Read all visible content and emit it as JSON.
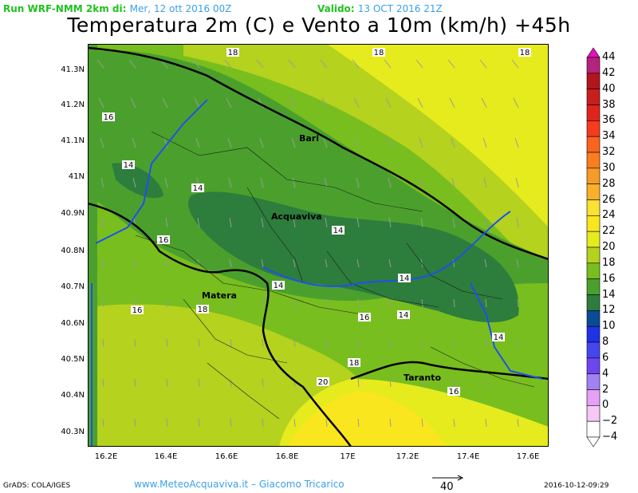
{
  "header": {
    "run_label": "Run WRF-NMM 2km di:",
    "run_date": "Mer, 12 ott 2016 00Z",
    "valid_label": "Valido:",
    "valid_date": "13 OCT 2016 21Z",
    "title": "Temperatura 2m (C) e Vento a 10m (km/h) +45h"
  },
  "map": {
    "lat_ticks": [
      "41.3N",
      "41.2N",
      "41.1N",
      "41N",
      "40.9N",
      "40.8N",
      "40.7N",
      "40.6N",
      "40.5N",
      "40.4N",
      "40.3N"
    ],
    "lon_ticks": [
      "16.2E",
      "16.4E",
      "16.6E",
      "16.8E",
      "17E",
      "17.2E",
      "17.4E",
      "17.6E"
    ],
    "cities": [
      "Bari",
      "Acquaviva",
      "Matera",
      "Taranto"
    ],
    "contour_labels": [
      "18",
      "18",
      "18",
      "16",
      "14",
      "14",
      "14",
      "14",
      "14",
      "14",
      "16",
      "16",
      "18",
      "16",
      "18",
      "20",
      "16",
      "14"
    ]
  },
  "colorbar": {
    "levels": [
      "44",
      "42",
      "40",
      "38",
      "36",
      "34",
      "32",
      "30",
      "28",
      "26",
      "24",
      "22",
      "20",
      "18",
      "16",
      "14",
      "12",
      "10",
      "8",
      "6",
      "4",
      "2",
      "0",
      "−2",
      "−4"
    ],
    "colors": [
      "#e60fbe",
      "#b4237d",
      "#b4141e",
      "#c81e1e",
      "#e1231e",
      "#f53c1e",
      "#fa641e",
      "#fa7d1e",
      "#f59b28",
      "#faaf28",
      "#fae132",
      "#fae61e",
      "#e6eb1e",
      "#b4d21e",
      "#78be1e",
      "#4ba02d",
      "#2d7d3c",
      "#0a4b96",
      "#1e32e6",
      "#4646f0",
      "#6e46f0",
      "#a082f5",
      "#e6a0f5",
      "#f5c8f5",
      "#ffffff"
    ]
  },
  "footer": {
    "software": "GrADS: COLA/IGES",
    "credits": "www.MeteoAcquaviva.it  –  Giacomo Tricarico",
    "vector_ref": "40",
    "timestamp": "2016-10-12-09:29"
  }
}
